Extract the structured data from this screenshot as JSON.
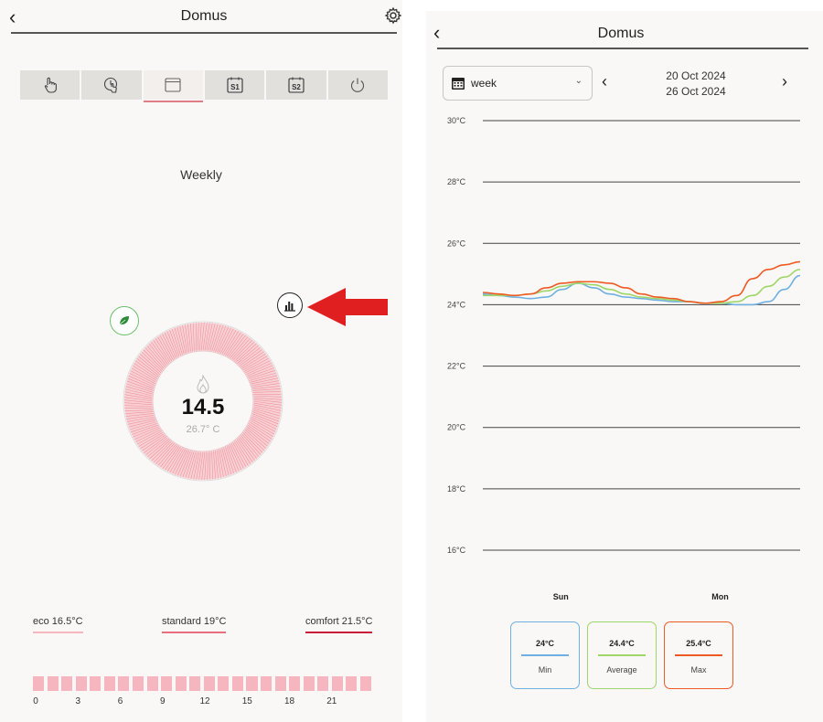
{
  "left": {
    "title": "Domus",
    "tabs": [
      {
        "name": "manual",
        "icon": "hand-pointer-icon"
      },
      {
        "name": "clock-touch",
        "icon": "clock-touch-icon"
      },
      {
        "name": "weekly",
        "icon": "calendar-icon",
        "active": true
      },
      {
        "name": "s1",
        "icon": "s1-box-icon",
        "label": "S1"
      },
      {
        "name": "s2",
        "icon": "s2-box-icon",
        "label": "S2"
      },
      {
        "name": "power",
        "icon": "power-icon"
      }
    ],
    "mode_title": "Weekly",
    "setpoint": "14.5",
    "ambient": "26.7° C",
    "presets": {
      "eco": "eco 16.5°C",
      "standard": "standard 19°C",
      "comfort": "comfort 21.5°C"
    },
    "timeline_labels": [
      "0",
      "3",
      "6",
      "9",
      "12",
      "15",
      "18",
      "21"
    ],
    "colors": {
      "eco": "#f6b6c0",
      "standard": "#e8707e",
      "comfort": "#c81e3c",
      "dial": "#f08a96",
      "arrow": "#e02020"
    }
  },
  "right": {
    "title": "Domus",
    "period_select": "week",
    "date_start": "20 Oct 2024",
    "date_end": "26 Oct 2024",
    "legend": [
      {
        "value": "24°C",
        "name": "Min",
        "color": "#6fb0e0"
      },
      {
        "value": "24.4°C",
        "name": "Average",
        "color": "#9fd66a"
      },
      {
        "value": "25.4°C",
        "name": "Max",
        "color": "#ee5a24"
      }
    ]
  },
  "chart_data": {
    "type": "line",
    "title": "",
    "xlabel": "",
    "ylabel": "",
    "ylim": [
      16,
      30
    ],
    "y_ticks": [
      "30°C",
      "28°C",
      "26°C",
      "24°C",
      "22°C",
      "20°C",
      "18°C",
      "16°C"
    ],
    "y_tick_values": [
      30,
      28,
      26,
      24,
      22,
      20,
      18,
      16
    ],
    "x_tick_labels": [
      "Sun",
      "Mon"
    ],
    "x_tick_positions": [
      0.25,
      0.75
    ],
    "x": [
      0.0,
      0.05,
      0.1,
      0.15,
      0.2,
      0.25,
      0.3,
      0.35,
      0.4,
      0.45,
      0.5,
      0.55,
      0.6,
      0.65,
      0.7,
      0.75,
      0.8,
      0.85,
      0.9,
      0.95,
      1.0
    ],
    "series": [
      {
        "name": "Min",
        "color": "#6fb0e0",
        "values": [
          24.35,
          24.3,
          24.25,
          24.2,
          24.25,
          24.5,
          24.7,
          24.55,
          24.35,
          24.25,
          24.2,
          24.15,
          24.1,
          24.1,
          24.05,
          24.05,
          24.0,
          24.0,
          24.1,
          24.5,
          24.95
        ]
      },
      {
        "name": "Average",
        "color": "#9fd66a",
        "values": [
          24.3,
          24.3,
          24.3,
          24.35,
          24.45,
          24.6,
          24.7,
          24.65,
          24.5,
          24.35,
          24.25,
          24.2,
          24.15,
          24.1,
          24.05,
          24.05,
          24.1,
          24.3,
          24.6,
          24.9,
          25.15
        ]
      },
      {
        "name": "Max",
        "color": "#ee5a24",
        "values": [
          24.4,
          24.35,
          24.3,
          24.35,
          24.55,
          24.7,
          24.75,
          24.75,
          24.7,
          24.55,
          24.35,
          24.25,
          24.2,
          24.1,
          24.05,
          24.1,
          24.3,
          24.85,
          25.15,
          25.3,
          25.4
        ]
      }
    ],
    "grid": true,
    "legend_position": "bottom"
  }
}
